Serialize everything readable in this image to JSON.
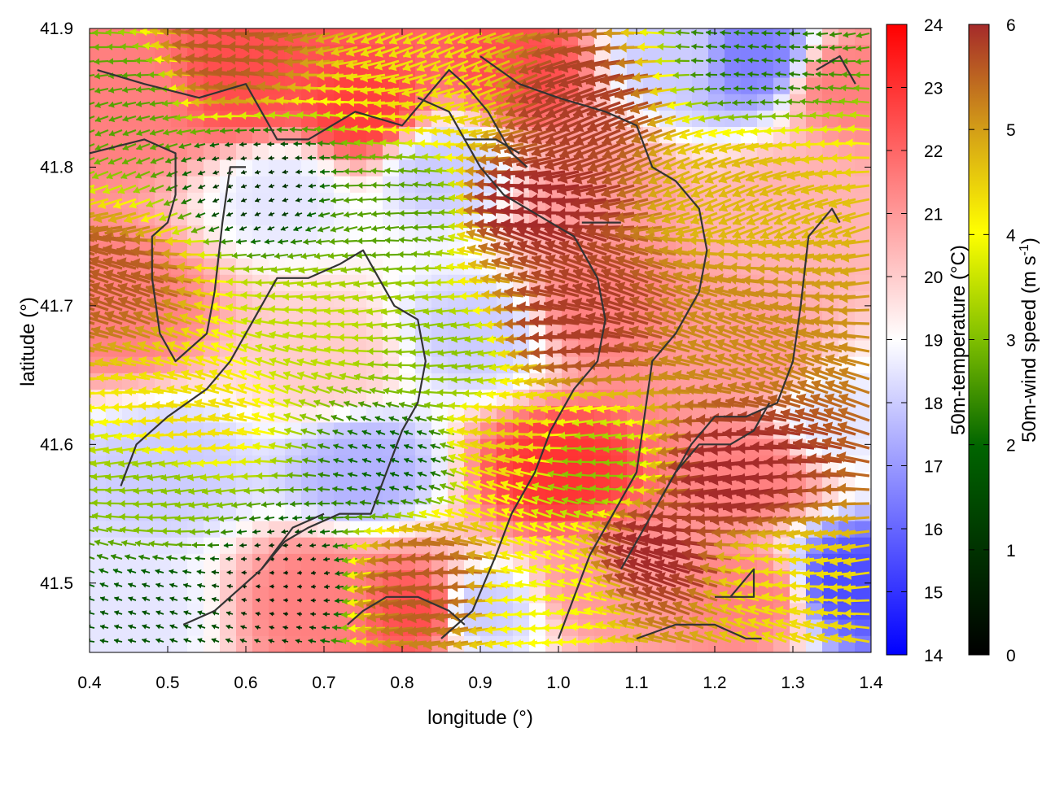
{
  "chart_data": {
    "type": "heatmap",
    "xlabel": "longitude (°)",
    "ylabel": "latitude (°)",
    "xlim": [
      0.4,
      1.4
    ],
    "ylim": [
      41.45,
      41.9
    ],
    "x_ticks": [
      "0.4",
      "0.5",
      "0.6",
      "0.7",
      "0.8",
      "0.9",
      "1.0",
      "1.1",
      "1.2",
      "1.3",
      "1.4"
    ],
    "y_ticks": [
      "41.5",
      "41.6",
      "41.7",
      "41.8",
      "41.9"
    ],
    "temperature_colorbar": {
      "label": "50m-temperature (°C)",
      "range": [
        14,
        24
      ],
      "ticks": [
        "14",
        "15",
        "16",
        "17",
        "18",
        "19",
        "20",
        "21",
        "22",
        "23",
        "24"
      ],
      "colors": [
        "#0000ff",
        "#ffffff",
        "#ff0000"
      ]
    },
    "wind_colorbar": {
      "label_main": "50m-wind speed (m s",
      "label_exp": "-1",
      "label_tail": ")",
      "range": [
        0,
        6
      ],
      "ticks": [
        "0",
        "1",
        "2",
        "3",
        "4",
        "5",
        "6"
      ],
      "colors": [
        "#000000",
        "#006400",
        "#7fbf00",
        "#ffff00",
        "#d4a017",
        "#a52a2a"
      ]
    },
    "temperature_field": [
      {
        "lon": 0.45,
        "lat": 41.85,
        "t": 21.5
      },
      {
        "lon": 0.6,
        "lat": 41.86,
        "t": 22.5
      },
      {
        "lon": 0.75,
        "lat": 41.84,
        "t": 22.8
      },
      {
        "lon": 0.95,
        "lat": 41.87,
        "t": 22.5
      },
      {
        "lon": 1.15,
        "lat": 41.88,
        "t": 18.0
      },
      {
        "lon": 1.25,
        "lat": 41.88,
        "t": 16.5
      },
      {
        "lon": 1.37,
        "lat": 41.86,
        "t": 21.5
      },
      {
        "lon": 0.65,
        "lat": 41.78,
        "t": 18.5
      },
      {
        "lon": 0.85,
        "lat": 41.8,
        "t": 18.0
      },
      {
        "lon": 1.05,
        "lat": 41.78,
        "t": 21.0
      },
      {
        "lon": 1.3,
        "lat": 41.77,
        "t": 20.5
      },
      {
        "lon": 0.45,
        "lat": 41.7,
        "t": 21.5
      },
      {
        "lon": 0.7,
        "lat": 41.66,
        "t": 20.0
      },
      {
        "lon": 0.9,
        "lat": 41.68,
        "t": 18.0
      },
      {
        "lon": 1.05,
        "lat": 41.7,
        "t": 21.5
      },
      {
        "lon": 1.25,
        "lat": 41.66,
        "t": 21.0
      },
      {
        "lon": 1.35,
        "lat": 41.62,
        "t": 18.5
      },
      {
        "lon": 0.5,
        "lat": 41.58,
        "t": 18.0
      },
      {
        "lon": 0.75,
        "lat": 41.58,
        "t": 17.5
      },
      {
        "lon": 1.0,
        "lat": 41.58,
        "t": 23.0
      },
      {
        "lon": 1.25,
        "lat": 41.58,
        "t": 21.5
      },
      {
        "lon": 1.37,
        "lat": 41.5,
        "t": 15.5
      },
      {
        "lon": 0.45,
        "lat": 41.48,
        "t": 18.5
      },
      {
        "lon": 0.7,
        "lat": 41.49,
        "t": 21.5
      },
      {
        "lon": 0.82,
        "lat": 41.48,
        "t": 22.5
      },
      {
        "lon": 0.9,
        "lat": 41.48,
        "t": 18.0
      },
      {
        "lon": 1.05,
        "lat": 41.5,
        "t": 21.0
      },
      {
        "lon": 1.25,
        "lat": 41.49,
        "t": 21.5
      }
    ],
    "wind_field": [
      {
        "lon": 0.45,
        "lat": 41.85,
        "speed": 2.0
      },
      {
        "lon": 0.6,
        "lat": 41.88,
        "speed": 5.5
      },
      {
        "lon": 0.85,
        "lat": 41.86,
        "speed": 4.0
      },
      {
        "lon": 1.05,
        "lat": 41.85,
        "speed": 5.8
      },
      {
        "lon": 1.25,
        "lat": 41.88,
        "speed": 1.5
      },
      {
        "lon": 0.62,
        "lat": 41.79,
        "speed": 0.6
      },
      {
        "lon": 0.8,
        "lat": 41.77,
        "speed": 2.0
      },
      {
        "lon": 1.0,
        "lat": 41.77,
        "speed": 6.0
      },
      {
        "lon": 1.25,
        "lat": 41.78,
        "speed": 4.5
      },
      {
        "lon": 0.45,
        "lat": 41.72,
        "speed": 5.5
      },
      {
        "lon": 0.7,
        "lat": 41.68,
        "speed": 3.0
      },
      {
        "lon": 0.85,
        "lat": 41.66,
        "speed": 2.5
      },
      {
        "lon": 1.05,
        "lat": 41.69,
        "speed": 5.8
      },
      {
        "lon": 1.25,
        "lat": 41.68,
        "speed": 5.0
      },
      {
        "lon": 0.55,
        "lat": 41.62,
        "speed": 4.0
      },
      {
        "lon": 0.5,
        "lat": 41.56,
        "speed": 2.5
      },
      {
        "lon": 0.8,
        "lat": 41.59,
        "speed": 1.2
      },
      {
        "lon": 0.95,
        "lat": 41.6,
        "speed": 4.2
      },
      {
        "lon": 1.05,
        "lat": 41.58,
        "speed": 2.5
      },
      {
        "lon": 1.25,
        "lat": 41.58,
        "speed": 6.0
      },
      {
        "lon": 0.5,
        "lat": 41.48,
        "speed": 1.0
      },
      {
        "lon": 0.65,
        "lat": 41.5,
        "speed": 0.4
      },
      {
        "lon": 0.85,
        "lat": 41.5,
        "speed": 5.5
      },
      {
        "lon": 1.0,
        "lat": 41.49,
        "speed": 3.5
      },
      {
        "lon": 1.15,
        "lat": 41.52,
        "speed": 6.0
      },
      {
        "lon": 1.3,
        "lat": 41.5,
        "speed": 4.0
      }
    ],
    "boundaries": [
      [
        [
          0.4,
          41.81
        ],
        [
          0.47,
          41.82
        ],
        [
          0.51,
          41.81
        ],
        [
          0.51,
          41.78
        ],
        [
          0.5,
          41.76
        ],
        [
          0.48,
          41.75
        ],
        [
          0.48,
          41.72
        ],
        [
          0.49,
          41.68
        ],
        [
          0.51,
          41.66
        ],
        [
          0.55,
          41.68
        ],
        [
          0.56,
          41.71
        ],
        [
          0.57,
          41.76
        ],
        [
          0.58,
          41.8
        ],
        [
          0.6,
          41.8
        ]
      ],
      [
        [
          0.41,
          41.87
        ],
        [
          0.47,
          41.86
        ],
        [
          0.54,
          41.85
        ],
        [
          0.6,
          41.86
        ],
        [
          0.64,
          41.82
        ],
        [
          0.68,
          41.82
        ],
        [
          0.74,
          41.84
        ],
        [
          0.8,
          41.83
        ],
        [
          0.83,
          41.85
        ],
        [
          0.86,
          41.87
        ],
        [
          0.88,
          41.86
        ],
        [
          0.91,
          41.84
        ],
        [
          0.94,
          41.81
        ],
        [
          0.96,
          41.8
        ]
      ],
      [
        [
          0.82,
          41.85
        ],
        [
          0.86,
          41.84
        ],
        [
          0.88,
          41.82
        ],
        [
          0.9,
          41.8
        ],
        [
          0.93,
          41.78
        ],
        [
          0.96,
          41.77
        ],
        [
          0.99,
          41.76
        ],
        [
          1.02,
          41.75
        ],
        [
          1.05,
          41.72
        ],
        [
          1.06,
          41.69
        ],
        [
          1.05,
          41.66
        ],
        [
          1.02,
          41.64
        ],
        [
          0.99,
          41.61
        ],
        [
          0.97,
          41.58
        ],
        [
          0.94,
          41.55
        ],
        [
          0.92,
          41.52
        ],
        [
          0.89,
          41.48
        ],
        [
          0.85,
          41.46
        ]
      ],
      [
        [
          0.9,
          41.88
        ],
        [
          0.95,
          41.86
        ],
        [
          1.0,
          41.85
        ],
        [
          1.06,
          41.84
        ],
        [
          1.1,
          41.83
        ],
        [
          1.12,
          41.8
        ],
        [
          1.15,
          41.79
        ],
        [
          1.18,
          41.77
        ],
        [
          1.19,
          41.74
        ],
        [
          1.18,
          41.71
        ],
        [
          1.15,
          41.68
        ],
        [
          1.12,
          41.66
        ],
        [
          1.11,
          41.62
        ],
        [
          1.1,
          41.58
        ],
        [
          1.07,
          41.55
        ],
        [
          1.04,
          41.52
        ],
        [
          1.02,
          41.49
        ],
        [
          1.0,
          41.46
        ]
      ],
      [
        [
          0.44,
          41.57
        ],
        [
          0.46,
          41.6
        ],
        [
          0.5,
          41.62
        ],
        [
          0.55,
          41.64
        ],
        [
          0.58,
          41.66
        ],
        [
          0.61,
          41.69
        ],
        [
          0.64,
          41.72
        ],
        [
          0.68,
          41.72
        ],
        [
          0.72,
          41.73
        ],
        [
          0.75,
          41.74
        ],
        [
          0.77,
          41.72
        ],
        [
          0.79,
          41.7
        ],
        [
          0.82,
          41.69
        ],
        [
          0.83,
          41.66
        ],
        [
          0.82,
          41.63
        ],
        [
          0.8,
          41.61
        ],
        [
          0.78,
          41.58
        ],
        [
          0.76,
          41.55
        ],
        [
          0.72,
          41.55
        ],
        [
          0.68,
          41.54
        ],
        [
          0.65,
          41.53
        ],
        [
          0.62,
          41.51
        ]
      ],
      [
        [
          0.52,
          41.47
        ],
        [
          0.56,
          41.48
        ],
        [
          0.6,
          41.5
        ],
        [
          0.62,
          41.51
        ],
        [
          0.66,
          41.54
        ],
        [
          0.7,
          41.55
        ]
      ],
      [
        [
          1.13,
          41.56
        ],
        [
          1.17,
          41.6
        ],
        [
          1.2,
          41.62
        ],
        [
          1.24,
          41.62
        ],
        [
          1.28,
          41.63
        ],
        [
          1.3,
          41.66
        ],
        [
          1.31,
          41.7
        ],
        [
          1.32,
          41.75
        ],
        [
          1.35,
          41.77
        ],
        [
          1.36,
          41.76
        ]
      ],
      [
        [
          1.08,
          41.51
        ],
        [
          1.12,
          41.55
        ],
        [
          1.15,
          41.58
        ],
        [
          1.18,
          41.6
        ],
        [
          1.22,
          41.6
        ],
        [
          1.25,
          41.61
        ],
        [
          1.27,
          41.63
        ]
      ],
      [
        [
          0.73,
          41.47
        ],
        [
          0.75,
          41.48
        ],
        [
          0.78,
          41.49
        ],
        [
          0.82,
          41.49
        ],
        [
          0.86,
          41.48
        ],
        [
          0.88,
          41.47
        ]
      ],
      [
        [
          1.1,
          41.46
        ],
        [
          1.15,
          41.47
        ],
        [
          1.2,
          41.47
        ],
        [
          1.24,
          41.46
        ],
        [
          1.26,
          41.46
        ]
      ],
      [
        [
          1.2,
          41.49
        ],
        [
          1.25,
          41.49
        ],
        [
          1.25,
          41.51
        ],
        [
          1.22,
          41.49
        ]
      ],
      [
        [
          1.33,
          41.87
        ],
        [
          1.36,
          41.88
        ],
        [
          1.38,
          41.86
        ]
      ],
      [
        [
          0.88,
          41.82
        ],
        [
          0.92,
          41.82
        ],
        [
          0.95,
          41.81
        ]
      ],
      [
        [
          1.03,
          41.76
        ],
        [
          1.06,
          41.76
        ],
        [
          1.08,
          41.76
        ]
      ]
    ]
  }
}
